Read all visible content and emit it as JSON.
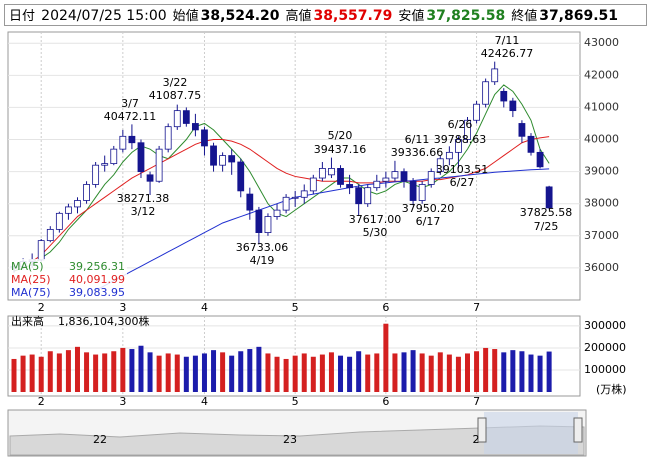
{
  "header": {
    "date_label": "日付",
    "date": "2024/07/25 15:00",
    "open_label": "始値",
    "open": "38,524.20",
    "high_label": "高値",
    "high": "38,557.79",
    "low_label": "安値",
    "low": "37,825.58",
    "close_label": "終値",
    "close": "37,869.51"
  },
  "chart_data": [
    {
      "type": "candlestick",
      "categories": [
        null,
        null,
        null,
        "2",
        null,
        null,
        null,
        null,
        null,
        null,
        null,
        null,
        "3",
        null,
        null,
        null,
        null,
        null,
        null,
        null,
        null,
        "4",
        null,
        null,
        null,
        null,
        null,
        null,
        null,
        null,
        null,
        "5",
        null,
        null,
        null,
        null,
        null,
        null,
        null,
        null,
        null,
        "6",
        null,
        null,
        null,
        null,
        null,
        null,
        null,
        null,
        null,
        "7",
        null,
        null,
        null,
        null,
        null,
        null,
        null,
        null
      ],
      "open": [
        36000,
        36050,
        36200,
        36250,
        36850,
        37200,
        37700,
        37900,
        38100,
        38600,
        39200,
        39250,
        39700,
        40100,
        39900,
        38900,
        38700,
        39700,
        40400,
        40900,
        40500,
        40300,
        39800,
        39200,
        39500,
        39300,
        38300,
        37800,
        37100,
        37600,
        37800,
        38200,
        38200,
        38400,
        38800,
        38900,
        39100,
        38600,
        38500,
        38000,
        38500,
        38700,
        38800,
        39000,
        38700,
        38100,
        38600,
        39000,
        39400,
        39600,
        40000,
        40600,
        41100,
        41800,
        41500,
        41200,
        40500,
        40100,
        39600,
        38524.2
      ],
      "high": [
        36150,
        36300,
        36450,
        36900,
        37300,
        37750,
        38000,
        38200,
        38700,
        39300,
        39500,
        39800,
        40300,
        40472.11,
        40000,
        39000,
        39800,
        40500,
        41087.75,
        41000,
        40800,
        40400,
        39900,
        39600,
        39700,
        39400,
        38500,
        37900,
        37700,
        38000,
        38300,
        38400,
        38600,
        38900,
        39300,
        39437.16,
        39200,
        38900,
        38600,
        38600,
        38900,
        39000,
        39336.66,
        39100,
        38800,
        38700,
        39100,
        39500,
        39788.63,
        40100,
        40700,
        41200,
        41900,
        42426.77,
        41600,
        41300,
        40600,
        40200,
        39700,
        38557.79
      ],
      "low": [
        35850,
        35950,
        36000,
        36200,
        36800,
        37100,
        37500,
        37700,
        38000,
        38500,
        39000,
        39200,
        39600,
        39700,
        38800,
        38271.38,
        38650,
        39600,
        40300,
        40400,
        40100,
        39500,
        39000,
        39000,
        38900,
        38200,
        37500,
        36733.06,
        37000,
        37500,
        37700,
        37900,
        38000,
        38300,
        38700,
        38800,
        38500,
        38300,
        37617,
        37900,
        38400,
        38500,
        38700,
        38500,
        37950.2,
        38000,
        38500,
        38900,
        39200,
        39103.51,
        39900,
        40500,
        41000,
        41700,
        41000,
        40700,
        39900,
        39500,
        39100,
        37825.58
      ],
      "close": [
        36050,
        36200,
        36250,
        36850,
        37200,
        37700,
        37900,
        38100,
        38600,
        39200,
        39250,
        39700,
        40100,
        39900,
        39000,
        38700,
        39700,
        40400,
        40900,
        40500,
        40300,
        39800,
        39200,
        39500,
        39300,
        38400,
        37800,
        37100,
        37600,
        37800,
        38200,
        38200,
        38400,
        38800,
        39100,
        39100,
        38600,
        38500,
        38000,
        38500,
        38700,
        38800,
        39000,
        38700,
        38100,
        38600,
        39000,
        39400,
        39600,
        40000,
        40600,
        41100,
        41800,
        42200,
        41200,
        40900,
        40100,
        39600,
        39150,
        37869.51
      ],
      "up_color": "#ffffff",
      "down_color": "#15158f",
      "ylim": [
        35000,
        43350
      ],
      "yticks": [
        36000,
        37000,
        38000,
        39000,
        40000,
        41000,
        42000,
        43000
      ],
      "grid": true,
      "series": [
        {
          "name": "MA(5)",
          "legend_label": "39,256.31",
          "color": "#2e8b2e",
          "values": [
            35900,
            36000,
            36100,
            36300,
            36500,
            36800,
            37200,
            37500,
            37800,
            38200,
            38600,
            38900,
            39300,
            39600,
            39800,
            39700,
            39500,
            39400,
            39700,
            40000,
            40400,
            40500,
            40300,
            40000,
            39700,
            39400,
            39000,
            38500,
            38000,
            37700,
            37600,
            37800,
            38000,
            38200,
            38400,
            38600,
            38800,
            38800,
            38600,
            38400,
            38300,
            38400,
            38600,
            38700,
            38600,
            38500,
            38600,
            38800,
            39000,
            39300,
            39700,
            40200,
            40800,
            41400,
            41700,
            41500,
            41100,
            40600,
            39700,
            39256.31
          ]
        },
        {
          "name": "MA(25)",
          "legend_label": "40,091.99",
          "color": "#e02020",
          "values": [
            null,
            null,
            36200,
            36400,
            36700,
            37000,
            37300,
            37600,
            37800,
            38000,
            38200,
            38400,
            38600,
            38800,
            38950,
            39100,
            39250,
            39400,
            39550,
            39700,
            39850,
            39950,
            40000,
            40000,
            39950,
            39850,
            39700,
            39500,
            39300,
            39100,
            38950,
            38850,
            38800,
            38750,
            38700,
            38700,
            38700,
            38700,
            38650,
            38650,
            38650,
            38700,
            38700,
            38700,
            38700,
            38700,
            38750,
            38750,
            38800,
            38850,
            38900,
            39000,
            39100,
            39300,
            39500,
            39700,
            39900,
            40000,
            40050,
            40091.99
          ]
        },
        {
          "name": "MA(75)",
          "legend_label": "39,083.95",
          "color": "#2030d0",
          "values": [
            null,
            null,
            null,
            null,
            null,
            null,
            null,
            null,
            null,
            35300,
            35450,
            35600,
            35750,
            35900,
            36050,
            36200,
            36350,
            36500,
            36650,
            36800,
            36950,
            37100,
            37250,
            37400,
            37500,
            37600,
            37700,
            37800,
            37900,
            38000,
            38100,
            38200,
            38250,
            38300,
            38350,
            38400,
            38450,
            38500,
            38550,
            38600,
            38620,
            38650,
            38680,
            38700,
            38720,
            38750,
            38780,
            38800,
            38830,
            38860,
            38890,
            38920,
            38950,
            38980,
            39000,
            39020,
            39040,
            39060,
            39070,
            39083.95
          ]
        }
      ],
      "annotations": [
        {
          "date": "3/7",
          "price": "40472.11"
        },
        {
          "date": "3/22",
          "price": "41087.75"
        },
        {
          "date": "3/12",
          "price": "38271.38"
        },
        {
          "date": "4/19",
          "price": "36733.06"
        },
        {
          "date": "5/20",
          "price": "39437.16"
        },
        {
          "date": "6/11",
          "price": "39336.66"
        },
        {
          "date": "5/30",
          "price": "37617.00"
        },
        {
          "date": "6/17",
          "price": "37950.20"
        },
        {
          "date": "6/26",
          "price": "39788.63"
        },
        {
          "date": "6/27",
          "price": "39103.51"
        },
        {
          "date": "7/11",
          "price": "42426.77"
        },
        {
          "date": "7/25",
          "price": "37825.58"
        }
      ]
    },
    {
      "type": "bar",
      "title": "出来高",
      "total_label": "1,836,104,300株",
      "unit": "(万株)",
      "categories": [
        null,
        null,
        null,
        "2",
        null,
        null,
        null,
        null,
        null,
        null,
        null,
        null,
        "3",
        null,
        null,
        null,
        null,
        null,
        null,
        null,
        null,
        "4",
        null,
        null,
        null,
        null,
        null,
        null,
        null,
        null,
        null,
        "5",
        null,
        null,
        null,
        null,
        null,
        null,
        null,
        null,
        null,
        "6",
        null,
        null,
        null,
        null,
        null,
        null,
        null,
        null,
        null,
        "7",
        null,
        null,
        null,
        null,
        null,
        null,
        null,
        null
      ],
      "values": [
        150000,
        165000,
        170000,
        160000,
        185000,
        175000,
        190000,
        205000,
        180000,
        170000,
        175000,
        185000,
        200000,
        195000,
        210000,
        180000,
        165000,
        175000,
        170000,
        160000,
        165000,
        175000,
        190000,
        180000,
        165000,
        185000,
        195000,
        205000,
        175000,
        160000,
        150000,
        165000,
        175000,
        160000,
        170000,
        180000,
        165000,
        160000,
        185000,
        170000,
        175000,
        310000,
        175000,
        180000,
        190000,
        175000,
        165000,
        180000,
        170000,
        160000,
        175000,
        185000,
        200000,
        195000,
        180000,
        190000,
        185000,
        170000,
        165000,
        183610.43
      ],
      "up_color": "#d42020",
      "down_color": "#1c1cab",
      "ylim": [
        0,
        345000
      ],
      "yticks": [
        100000,
        200000,
        300000
      ],
      "grid": true
    }
  ],
  "navigator": {
    "labels": [
      "22",
      "23",
      "2"
    ]
  }
}
